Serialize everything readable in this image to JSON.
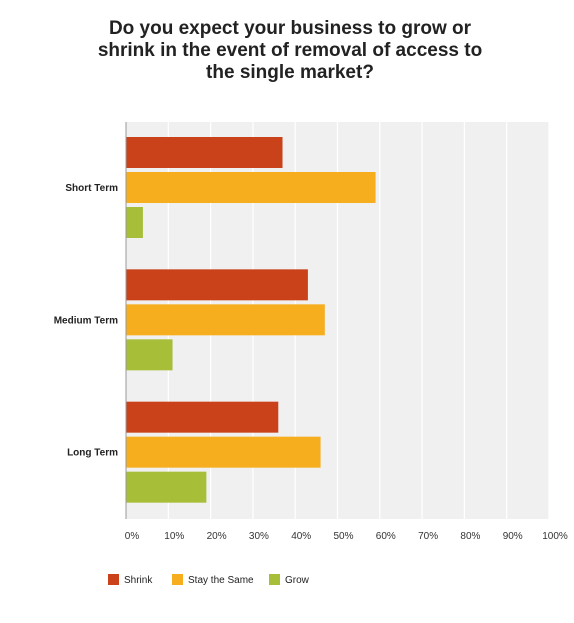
{
  "chart_data": {
    "type": "bar",
    "orientation": "horizontal",
    "title": "Do you expect your business to grow or shrink in the event of removal of access to the single market?",
    "categories": [
      "Short Term",
      "Medium Term",
      "Long Term"
    ],
    "series": [
      {
        "name": "Shrink",
        "color": "#c9421a",
        "values": [
          37,
          43,
          36
        ]
      },
      {
        "name": "Stay the Same",
        "color": "#f6ae1f",
        "values": [
          59,
          47,
          46
        ]
      },
      {
        "name": "Grow",
        "color": "#a7be38",
        "values": [
          4,
          11,
          19
        ]
      }
    ],
    "x_ticks": [
      "0%",
      "10%",
      "20%",
      "30%",
      "40%",
      "50%",
      "60%",
      "70%",
      "80%",
      "90%",
      "100%"
    ],
    "xlim": [
      0,
      100
    ],
    "grid": true,
    "plot_background": "#f0f0f0",
    "legend_position": "bottom-left"
  }
}
